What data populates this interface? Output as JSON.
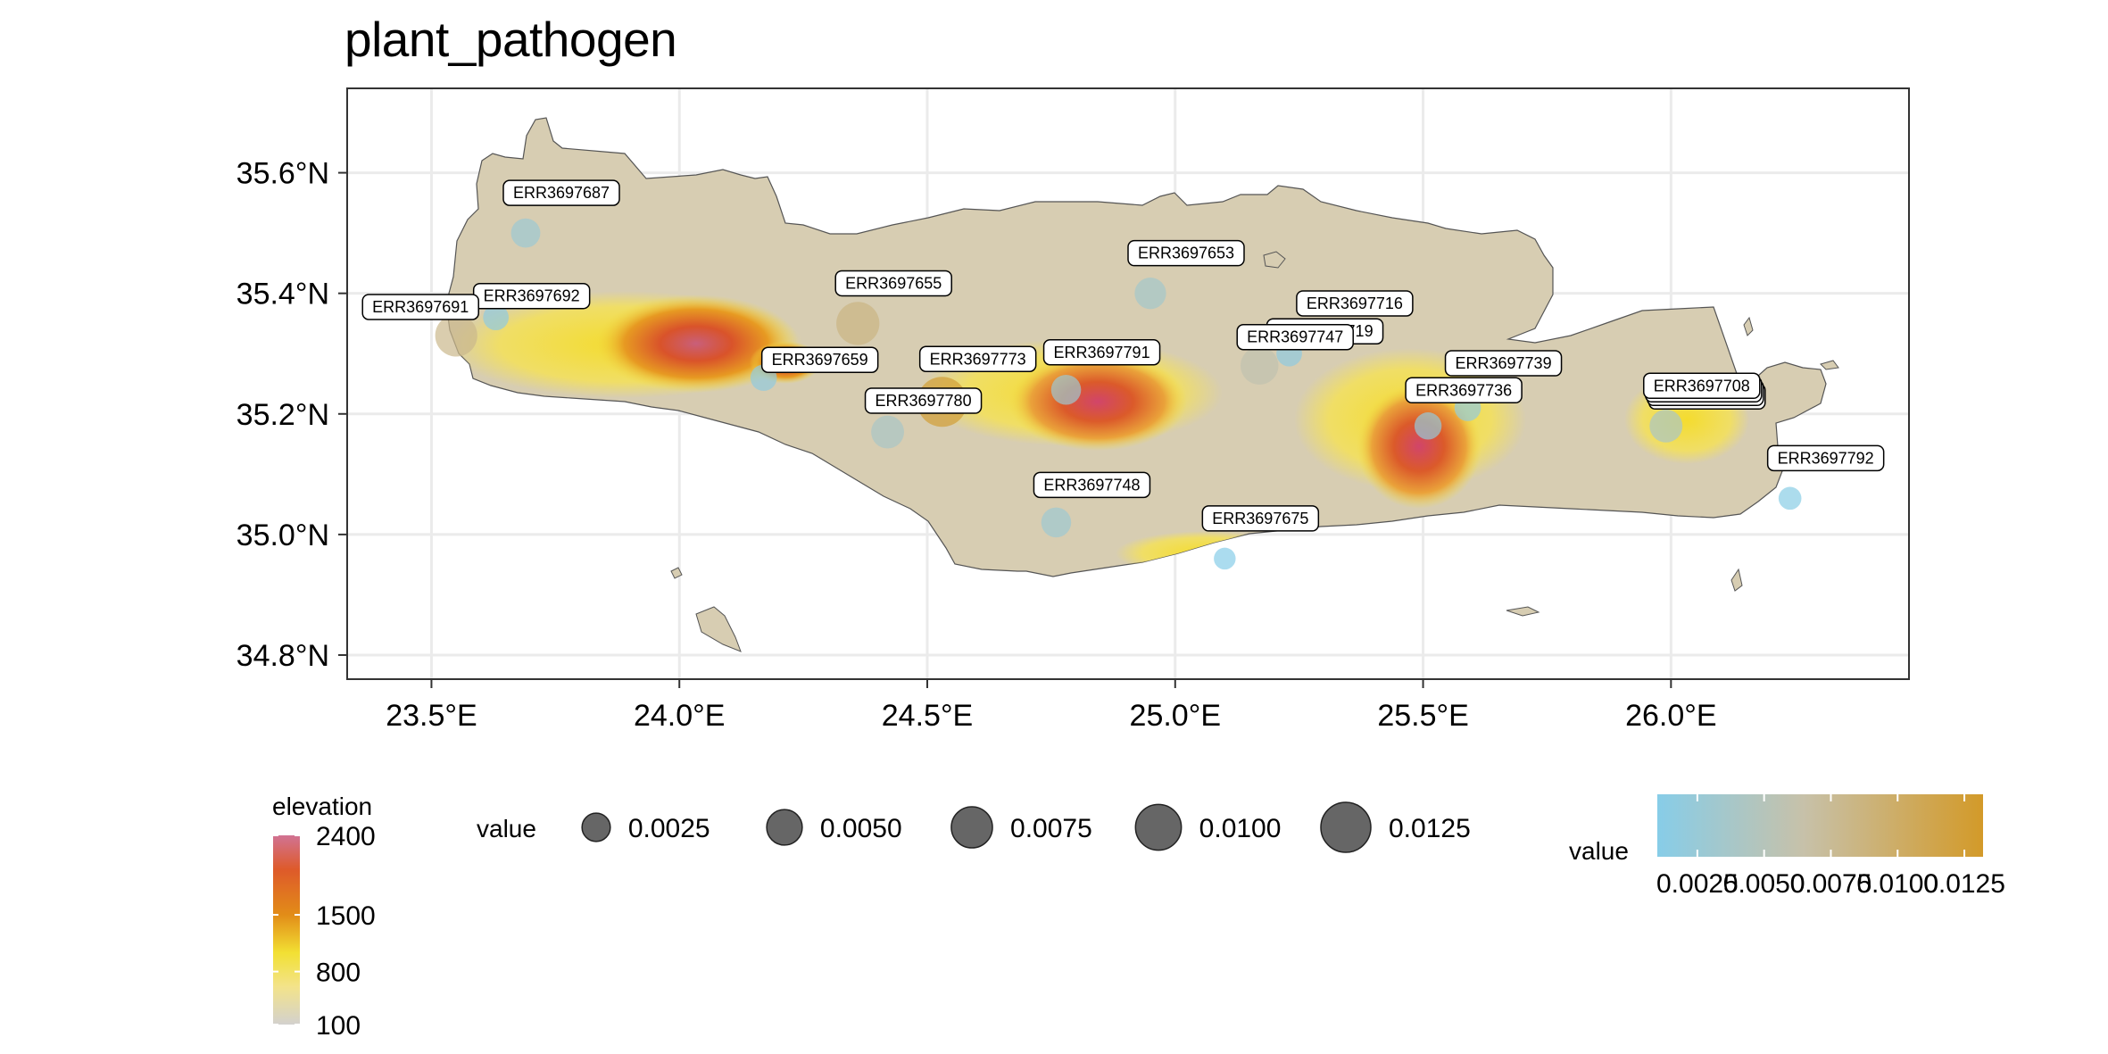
{
  "title": "plant_pathogen",
  "map": {
    "axis_y_ticks": [
      {
        "label": "35.6°N",
        "lat": 35.6
      },
      {
        "label": "35.4°N",
        "lat": 35.4
      },
      {
        "label": "35.2°N",
        "lat": 35.2
      },
      {
        "label": "35.0°N",
        "lat": 35.0
      },
      {
        "label": "34.8°N",
        "lat": 34.8
      }
    ],
    "axis_x_ticks": [
      {
        "label": "23.5°E",
        "lon": 23.5
      },
      {
        "label": "24.0°E",
        "lon": 24.0
      },
      {
        "label": "24.5°E",
        "lon": 24.5
      },
      {
        "label": "25.0°E",
        "lon": 25.0
      },
      {
        "label": "25.5°E",
        "lon": 25.5
      },
      {
        "label": "26.0°E",
        "lon": 26.0
      }
    ],
    "lon_range": [
      23.33,
      26.48
    ],
    "lat_range": [
      34.76,
      35.74
    ],
    "grid": true
  },
  "points": [
    {
      "label": "ERR3697687",
      "lon": 23.69,
      "lat": 35.5,
      "value": 0.0028
    },
    {
      "label": "ERR3697692",
      "lon": 23.63,
      "lat": 35.36,
      "value": 0.0018
    },
    {
      "label": "ERR3697691",
      "lon": 23.55,
      "lat": 35.33,
      "value": 0.008
    },
    {
      "label": "ERR3697659",
      "lon": 24.17,
      "lat": 35.26,
      "value": 0.002
    },
    {
      "label": "ERR3697655",
      "lon": 24.36,
      "lat": 35.35,
      "value": 0.0085
    },
    {
      "label": "ERR3697653",
      "lon": 24.95,
      "lat": 35.4,
      "value": 0.0035
    },
    {
      "label": "ERR3697716",
      "lon": 25.29,
      "lat": 35.33,
      "value": 0.002
    },
    {
      "label": "ERR3697719",
      "lon": 25.23,
      "lat": 35.3,
      "value": 0.0018
    },
    {
      "label": "ERR3697773",
      "lon": 24.53,
      "lat": 35.22,
      "value": 0.0125
    },
    {
      "label": "ERR3697791",
      "lon": 24.78,
      "lat": 35.24,
      "value": 0.003
    },
    {
      "label": "ERR3697747",
      "lon": 25.17,
      "lat": 35.28,
      "value": 0.006
    },
    {
      "label": "ERR3697780",
      "lon": 24.42,
      "lat": 35.17,
      "value": 0.004
    },
    {
      "label": "ERR3697739",
      "lon": 25.59,
      "lat": 35.21,
      "value": 0.002
    },
    {
      "label": "ERR3697736",
      "lon": 25.51,
      "lat": 35.18,
      "value": 0.0022
    },
    {
      "label": "ERR3697708",
      "lon": 25.99,
      "lat": 35.18,
      "value": 0.004
    },
    {
      "label": "ERR3697748",
      "lon": 24.76,
      "lat": 35.02,
      "value": 0.003
    },
    {
      "label": "ERR3697675",
      "lon": 25.1,
      "lat": 34.96,
      "value": 0.001
    },
    {
      "label": "ERR3697792",
      "lon": 26.24,
      "lat": 35.06,
      "value": 0.0012
    }
  ],
  "legend_elevation": {
    "title": "elevation",
    "labels": [
      "2400",
      "1500",
      "800",
      "100"
    ],
    "colors": [
      "#d17393",
      "#de5a2a",
      "#e28c18",
      "#f2e033",
      "#f3e38a",
      "#d3d1ce"
    ]
  },
  "legend_size": {
    "title": "value",
    "labels": [
      "0.0025",
      "0.0050",
      "0.0075",
      "0.0100",
      "0.0125"
    ],
    "values": [
      0.0025,
      0.005,
      0.0075,
      0.01,
      0.0125
    ]
  },
  "legend_color": {
    "title": "value",
    "labels": [
      "0.0025",
      "0.0050",
      "0.0075",
      "0.0100",
      "0.0125"
    ],
    "low_color": "#87cde8",
    "mid_color": "#c7c1a9",
    "high_color": "#d39a29"
  },
  "colors": {
    "land": "#d7cdb2",
    "highland": "#f2df45",
    "peak": "#e07a2a",
    "summit": "#c95f5f",
    "grid": "#ebebeb",
    "panel_border": "#333333"
  }
}
